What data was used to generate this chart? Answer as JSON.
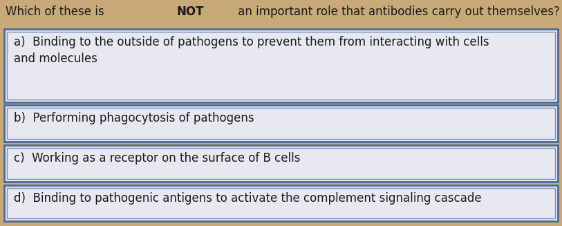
{
  "question_parts": [
    {
      "text": "Which of these is ",
      "bold": false
    },
    {
      "text": "NOT",
      "bold": true
    },
    {
      "text": " an important role that antibodies carry out themselves?",
      "bold": false
    }
  ],
  "background_color": "#c8a97a",
  "box_fill_color": "#e8e8f0",
  "box_outer_border_color": "#4a6a9a",
  "box_inner_border_color": "#7090b8",
  "text_color": "#1a1a1a",
  "options": [
    {
      "label": "a)",
      "text": "Binding to the outside of pathogens to prevent them from interacting with cells\nand molecules"
    },
    {
      "label": "b)",
      "text": "Performing phagocytosis of pathogens"
    },
    {
      "label": "c)",
      "text": "Working as a receptor on the surface of B cells"
    },
    {
      "label": "d)",
      "text": "Binding to pathogenic antigens to activate the complement signaling cascade"
    }
  ],
  "question_fontsize": 12,
  "option_fontsize": 12,
  "fig_width": 8.13,
  "fig_height": 3.27,
  "dpi": 100
}
